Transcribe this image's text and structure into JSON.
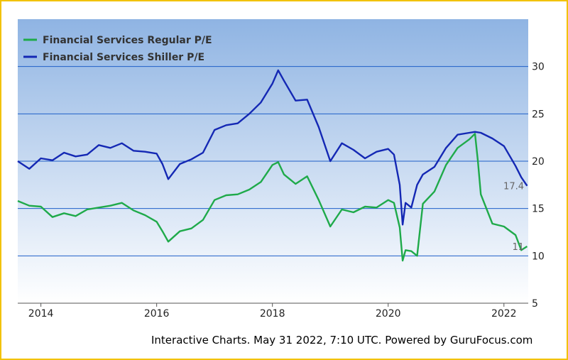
{
  "chart_data": {
    "type": "line",
    "title": "",
    "xlabel": "",
    "ylabel": "",
    "xlim": [
      2013.6,
      2022.42
    ],
    "ylim": [
      5,
      35
    ],
    "yticks": [
      5,
      10,
      15,
      20,
      25,
      30
    ],
    "xticks": [
      2014,
      2016,
      2018,
      2020,
      2022
    ],
    "grid": "horizontal",
    "legend_position": "top-left",
    "end_labels": [
      "17.4",
      "11"
    ],
    "colors": {
      "regular": "#1faa4a",
      "shiller": "#1428b4",
      "plot_bg_top": "#8fb4e3",
      "plot_bg_bottom": "#ffffff",
      "grid": "#1f5fc8",
      "frame": "#f2c200"
    },
    "series": [
      {
        "name": "Financial Services Regular P/E",
        "x": [
          2013.6,
          2013.8,
          2014.0,
          2014.2,
          2014.4,
          2014.6,
          2014.8,
          2015.0,
          2015.2,
          2015.4,
          2015.6,
          2015.8,
          2016.0,
          2016.1,
          2016.2,
          2016.4,
          2016.6,
          2016.8,
          2017.0,
          2017.2,
          2017.4,
          2017.6,
          2017.8,
          2018.0,
          2018.1,
          2018.2,
          2018.4,
          2018.6,
          2018.8,
          2019.0,
          2019.2,
          2019.4,
          2019.6,
          2019.8,
          2020.0,
          2020.1,
          2020.2,
          2020.25,
          2020.3,
          2020.4,
          2020.5,
          2020.6,
          2020.8,
          2021.0,
          2021.2,
          2021.4,
          2021.5,
          2021.55,
          2021.6,
          2021.8,
          2022.0,
          2022.2,
          2022.3,
          2022.4
        ],
        "values": [
          15.8,
          15.3,
          15.2,
          14.1,
          14.5,
          14.2,
          14.9,
          15.1,
          15.3,
          15.6,
          14.8,
          14.3,
          13.6,
          12.6,
          11.5,
          12.6,
          12.9,
          13.8,
          15.9,
          16.4,
          16.5,
          17.0,
          17.8,
          19.6,
          19.9,
          18.6,
          17.6,
          18.4,
          15.9,
          13.1,
          14.9,
          14.6,
          15.2,
          15.1,
          15.9,
          15.6,
          13.0,
          9.5,
          10.6,
          10.5,
          10.0,
          15.5,
          16.8,
          19.6,
          21.4,
          22.3,
          22.9,
          20.0,
          16.5,
          13.4,
          13.1,
          12.2,
          10.6,
          11.0
        ]
      },
      {
        "name": "Financial Services Shiller P/E",
        "x": [
          2013.6,
          2013.8,
          2014.0,
          2014.2,
          2014.4,
          2014.6,
          2014.8,
          2015.0,
          2015.2,
          2015.4,
          2015.6,
          2015.8,
          2016.0,
          2016.1,
          2016.2,
          2016.4,
          2016.6,
          2016.8,
          2017.0,
          2017.2,
          2017.4,
          2017.6,
          2017.8,
          2018.0,
          2018.1,
          2018.2,
          2018.4,
          2018.6,
          2018.8,
          2019.0,
          2019.2,
          2019.4,
          2019.6,
          2019.8,
          2020.0,
          2020.1,
          2020.2,
          2020.25,
          2020.3,
          2020.4,
          2020.5,
          2020.6,
          2020.8,
          2021.0,
          2021.2,
          2021.4,
          2021.5,
          2021.6,
          2021.8,
          2022.0,
          2022.2,
          2022.3,
          2022.4
        ],
        "values": [
          20.0,
          19.2,
          20.3,
          20.1,
          20.9,
          20.5,
          20.7,
          21.7,
          21.4,
          21.9,
          21.1,
          21.0,
          20.8,
          19.7,
          18.1,
          19.7,
          20.2,
          20.9,
          23.3,
          23.8,
          24.0,
          25.0,
          26.2,
          28.2,
          29.6,
          28.5,
          26.4,
          26.5,
          23.6,
          20.0,
          21.9,
          21.2,
          20.3,
          21.0,
          21.3,
          20.7,
          17.5,
          13.3,
          15.6,
          15.1,
          17.5,
          18.6,
          19.4,
          21.4,
          22.8,
          23.0,
          23.1,
          23.0,
          22.4,
          21.6,
          19.5,
          18.3,
          17.4
        ]
      }
    ]
  },
  "footer": {
    "text": "Interactive Charts. May 31 2022, 7:10 UTC. Powered by GuruFocus.com"
  }
}
